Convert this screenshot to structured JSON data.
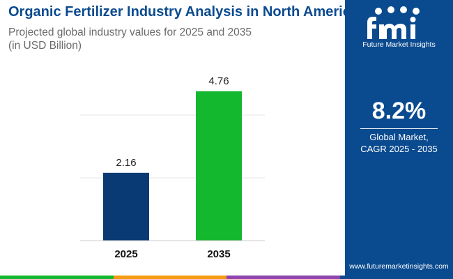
{
  "header": {
    "title": "Organic Fertilizer Industry Analysis in North America",
    "subtitle_line1": "Projected global industry values for 2025 and 2035",
    "subtitle_line2": "(in USD Billion)"
  },
  "chart_data": {
    "type": "bar",
    "categories": [
      "2025",
      "2035"
    ],
    "values": [
      2.16,
      4.76
    ],
    "value_labels": [
      "2.16",
      "4.76"
    ],
    "bar_colors": [
      "#0a3a73",
      "#14b82e"
    ],
    "ylim": [
      0,
      6
    ],
    "grid": true,
    "xlabel": "",
    "ylabel": ""
  },
  "side_panel": {
    "brand_tagline": "Future Market Insights",
    "cagr_value": "8.2%",
    "cagr_label_line1": "Global Market,",
    "cagr_label_line2": "CAGR 2025 - 2035",
    "website": "www.futuremarketinsights.com",
    "background_color": "#0a4a8f"
  },
  "bottom_bar_colors": [
    "#14b82e",
    "#f39c12",
    "#8e44ad",
    "#0a4a8f"
  ]
}
